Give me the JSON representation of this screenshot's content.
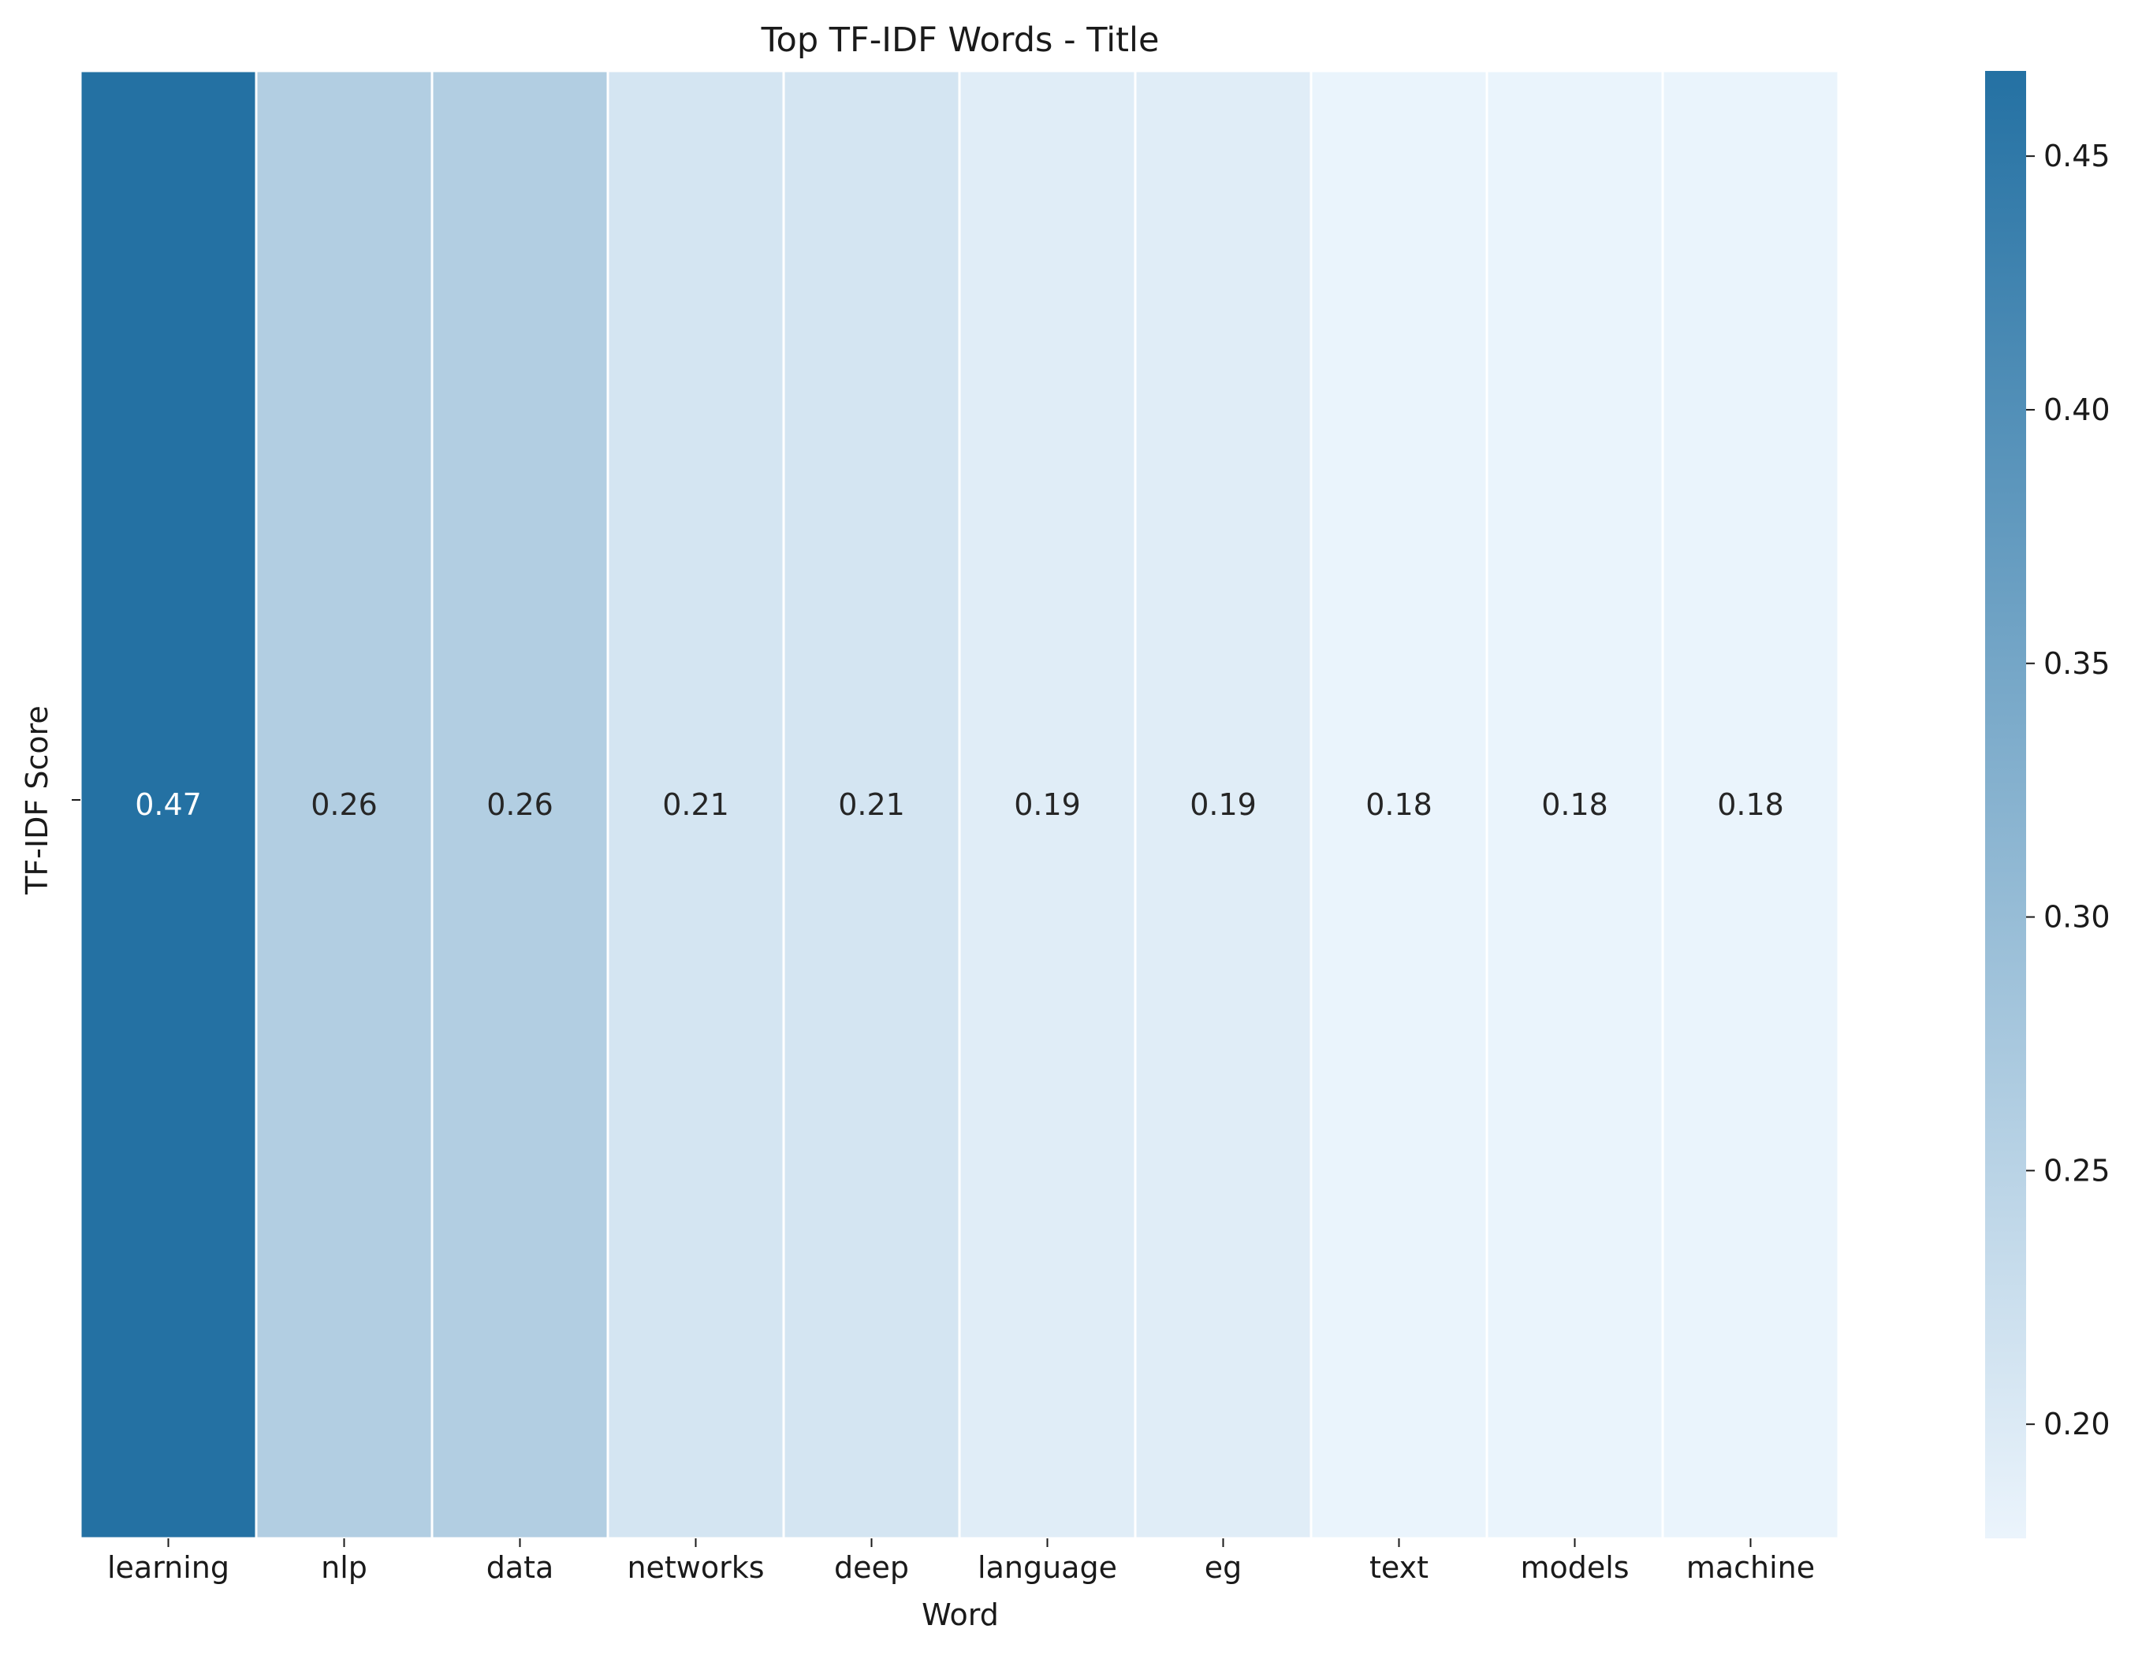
{
  "chart_data": {
    "type": "heatmap",
    "title": "Top TF-IDF Words - Title",
    "xlabel": "Word",
    "ylabel": "TF-IDF Score",
    "categories": [
      "learning",
      "nlp",
      "data",
      "networks",
      "deep",
      "language",
      "eg",
      "text",
      "models",
      "machine"
    ],
    "values": [
      0.4668,
      0.2605,
      0.2605,
      0.2114,
      0.2114,
      0.1932,
      0.1932,
      0.1785,
      0.1785,
      0.1785
    ],
    "value_labels": [
      "0.47",
      "0.26",
      "0.26",
      "0.21",
      "0.21",
      "0.19",
      "0.19",
      "0.18",
      "0.18",
      "0.18"
    ],
    "colorbar": {
      "range": [
        0.1775,
        0.4668
      ],
      "ticks": [
        0.2,
        0.25,
        0.3,
        0.35,
        0.4,
        0.45
      ],
      "tick_labels": [
        "0.20",
        "0.25",
        "0.30",
        "0.35",
        "0.40",
        "0.45"
      ],
      "color_low": "#ebf4fc",
      "color_high": "#2471a3"
    },
    "grid": false,
    "legend": "colorbar-right"
  }
}
